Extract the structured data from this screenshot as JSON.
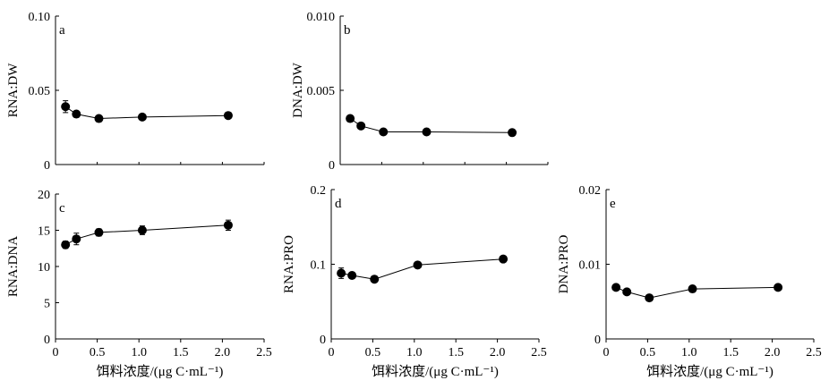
{
  "chart_data": [
    {
      "id": "a",
      "type": "line",
      "panel_label": "a",
      "ylabel": "RNA:DW",
      "xlabel": "",
      "x": [
        0.12,
        0.25,
        0.52,
        1.04,
        2.07
      ],
      "values": [
        0.039,
        0.034,
        0.031,
        0.032,
        0.033
      ],
      "errors": [
        0.004,
        0.0015,
        0.001,
        0.0015,
        0.002
      ],
      "ylim": [
        0,
        0.1
      ],
      "yticks": [
        "0",
        "0.05",
        "0.10"
      ],
      "xlim": [
        0,
        2.5
      ],
      "xticks": [],
      "grid": false
    },
    {
      "id": "b",
      "type": "line",
      "panel_label": "b",
      "ylabel": "DNA:DW",
      "xlabel": "",
      "x": [
        0.12,
        0.25,
        0.52,
        1.04,
        2.07
      ],
      "values": [
        0.0031,
        0.0026,
        0.0022,
        0.0022,
        0.00215
      ],
      "errors": [
        0.0002,
        0.0001,
        0.0001,
        0.0001,
        0.0001
      ],
      "ylim": [
        0,
        0.01
      ],
      "yticks": [
        "0",
        "0.005",
        "0.010"
      ],
      "xlim": [
        0,
        2.5
      ],
      "xticks": [],
      "grid": false
    },
    {
      "id": "c",
      "type": "line",
      "panel_label": "c",
      "ylabel": "RNA:DNA",
      "xlabel": "饵料浓度/(μg C·mL⁻¹)",
      "x": [
        0.12,
        0.25,
        0.52,
        1.04,
        2.07
      ],
      "values": [
        13.0,
        13.8,
        14.7,
        15.0,
        15.7
      ],
      "errors": [
        0.5,
        0.8,
        0.5,
        0.6,
        0.7
      ],
      "ylim": [
        0,
        20
      ],
      "yticks": [
        "0",
        "5",
        "10",
        "15",
        "20"
      ],
      "xlim": [
        0,
        2.5
      ],
      "xticks": [
        "0",
        "0.5",
        "1.0",
        "1.5",
        "2.0",
        "2.5"
      ],
      "grid": false
    },
    {
      "id": "d",
      "type": "line",
      "panel_label": "d",
      "ylabel": "RNA:PRO",
      "xlabel": "饵料浓度/(μg C·mL⁻¹)",
      "x": [
        0.12,
        0.25,
        0.52,
        1.04,
        2.07
      ],
      "values": [
        0.088,
        0.085,
        0.08,
        0.099,
        0.107
      ],
      "errors": [
        0.007,
        0.004,
        0.003,
        0.003,
        0.003
      ],
      "ylim": [
        0,
        0.2
      ],
      "yticks": [
        "0",
        "0.1",
        "0.2"
      ],
      "xlim": [
        0,
        2.5
      ],
      "xticks": [
        "0",
        "0.5",
        "1.0",
        "1.5",
        "2.0",
        "2.5"
      ],
      "grid": false
    },
    {
      "id": "e",
      "type": "line",
      "panel_label": "e",
      "ylabel": "DNA:PRO",
      "xlabel": "饵料浓度/(μg C·mL⁻¹)",
      "x": [
        0.12,
        0.25,
        0.52,
        1.04,
        2.07
      ],
      "values": [
        0.0069,
        0.0063,
        0.0055,
        0.0067,
        0.0069
      ],
      "errors": [
        0.0003,
        0.0003,
        0.0003,
        0.0003,
        0.0004
      ],
      "ylim": [
        0,
        0.02
      ],
      "yticks": [
        "0",
        "0.01",
        "0.02"
      ],
      "xlim": [
        0,
        2.5
      ],
      "xticks": [
        "0",
        "0.5",
        "1.0",
        "1.5",
        "2.0",
        "2.5"
      ],
      "grid": false
    }
  ]
}
